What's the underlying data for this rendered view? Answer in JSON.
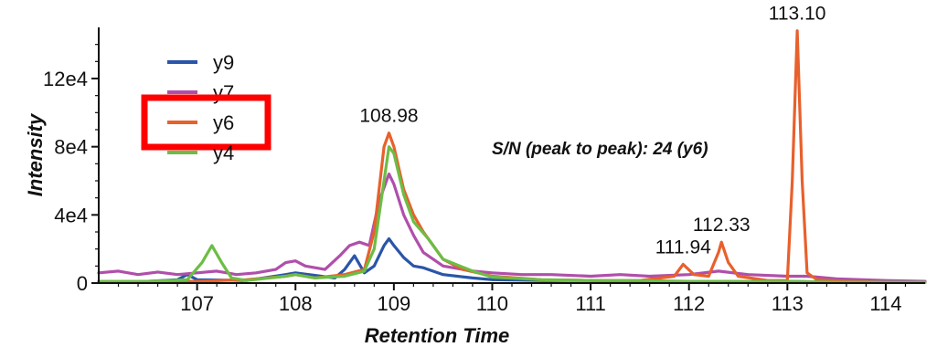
{
  "chart_data": {
    "type": "line",
    "title": "",
    "xlabel": "Retention Time",
    "ylabel": "Intensity",
    "xlim": [
      106.0,
      114.4
    ],
    "ylim": [
      0,
      150000
    ],
    "x_ticks": [
      107,
      108,
      109,
      110,
      111,
      112,
      113,
      114
    ],
    "y_ticks": [
      {
        "value": 0,
        "label": "0"
      },
      {
        "value": 40000,
        "label": "4e4"
      },
      {
        "value": 80000,
        "label": "8e4"
      },
      {
        "value": 120000,
        "label": "12e4"
      }
    ],
    "annotation": "S/N  (peak to peak): 24 (y6)",
    "highlighted_series": "y6",
    "peak_labels": [
      {
        "text": "108.98",
        "x": 108.95,
        "y": 88000
      },
      {
        "text": "111.94",
        "x": 111.94,
        "y": 11000
      },
      {
        "text": "112.33",
        "x": 112.33,
        "y": 24000
      },
      {
        "text": "113.10",
        "x": 113.1,
        "y": 148000
      }
    ],
    "series": [
      {
        "name": "y9",
        "color": "#2a55a8",
        "x": [
          106.0,
          106.5,
          106.8,
          106.9,
          107.0,
          107.5,
          107.9,
          108.0,
          108.2,
          108.4,
          108.5,
          108.6,
          108.7,
          108.8,
          108.9,
          108.95,
          109.0,
          109.1,
          109.2,
          109.3,
          109.5,
          109.8,
          110.0,
          110.5,
          111.0,
          111.5,
          112.0,
          112.5,
          113.0,
          113.5,
          114.0,
          114.4
        ],
        "y": [
          1000,
          1000,
          2000,
          5000,
          2000,
          1500,
          5000,
          6000,
          4500,
          3000,
          8000,
          16000,
          6000,
          10000,
          22000,
          26000,
          22000,
          15000,
          10000,
          9000,
          5000,
          3000,
          2000,
          1500,
          1500,
          1000,
          1000,
          1000,
          1000,
          500,
          500,
          500
        ]
      },
      {
        "name": "y7",
        "color": "#b04fab",
        "x": [
          106.0,
          106.2,
          106.4,
          106.6,
          106.8,
          107.0,
          107.2,
          107.4,
          107.6,
          107.8,
          107.9,
          108.0,
          108.1,
          108.3,
          108.45,
          108.55,
          108.65,
          108.75,
          108.85,
          108.95,
          109.0,
          109.1,
          109.2,
          109.3,
          109.5,
          109.8,
          110.0,
          110.3,
          110.6,
          111.0,
          111.3,
          111.6,
          112.0,
          112.3,
          112.6,
          113.0,
          113.2,
          113.5,
          114.0,
          114.4
        ],
        "y": [
          6000,
          7000,
          5000,
          6500,
          5000,
          6000,
          7000,
          5000,
          6000,
          8000,
          12000,
          13000,
          10000,
          8000,
          16000,
          22000,
          24000,
          22000,
          48000,
          64000,
          58000,
          40000,
          28000,
          18000,
          10000,
          7000,
          6000,
          5000,
          5000,
          4000,
          5000,
          4000,
          5000,
          7000,
          5000,
          4000,
          4000,
          2500,
          1500,
          1000
        ]
      },
      {
        "name": "y6",
        "color": "#e8602c",
        "x": [
          106.0,
          106.5,
          107.0,
          107.5,
          107.9,
          108.0,
          108.2,
          108.5,
          108.7,
          108.8,
          108.9,
          108.95,
          109.0,
          109.1,
          109.2,
          109.3,
          109.4,
          109.5,
          109.7,
          110.0,
          110.5,
          111.0,
          111.5,
          111.85,
          111.94,
          112.05,
          112.2,
          112.3,
          112.33,
          112.4,
          112.5,
          112.8,
          113.0,
          113.05,
          113.1,
          113.15,
          113.2,
          113.3,
          113.6,
          114.0,
          114.4
        ],
        "y": [
          1000,
          1000,
          1000,
          2000,
          4000,
          5000,
          3000,
          5000,
          8000,
          30000,
          80000,
          88000,
          80000,
          55000,
          40000,
          30000,
          22000,
          14000,
          8000,
          4000,
          2000,
          1500,
          1500,
          4000,
          11000,
          5000,
          4000,
          18000,
          24000,
          12000,
          4000,
          1500,
          1500,
          60000,
          148000,
          60000,
          6000,
          2000,
          1000,
          500,
          500
        ]
      },
      {
        "name": "y4",
        "color": "#6cbd45",
        "x": [
          106.0,
          106.5,
          106.9,
          107.05,
          107.15,
          107.25,
          107.35,
          107.5,
          107.9,
          108.0,
          108.2,
          108.5,
          108.7,
          108.8,
          108.9,
          108.95,
          109.0,
          109.1,
          109.2,
          109.35,
          109.5,
          109.8,
          110.0,
          110.5,
          111.0,
          111.5,
          112.0,
          112.5,
          113.0,
          113.5,
          114.0,
          114.4
        ],
        "y": [
          1000,
          1000,
          2000,
          12000,
          22000,
          12000,
          3000,
          1500,
          4000,
          5000,
          3000,
          4000,
          7000,
          20000,
          60000,
          80000,
          76000,
          52000,
          36000,
          26000,
          14000,
          7000,
          3500,
          2000,
          1500,
          1500,
          1000,
          1000,
          1000,
          500,
          500,
          500
        ]
      }
    ]
  }
}
